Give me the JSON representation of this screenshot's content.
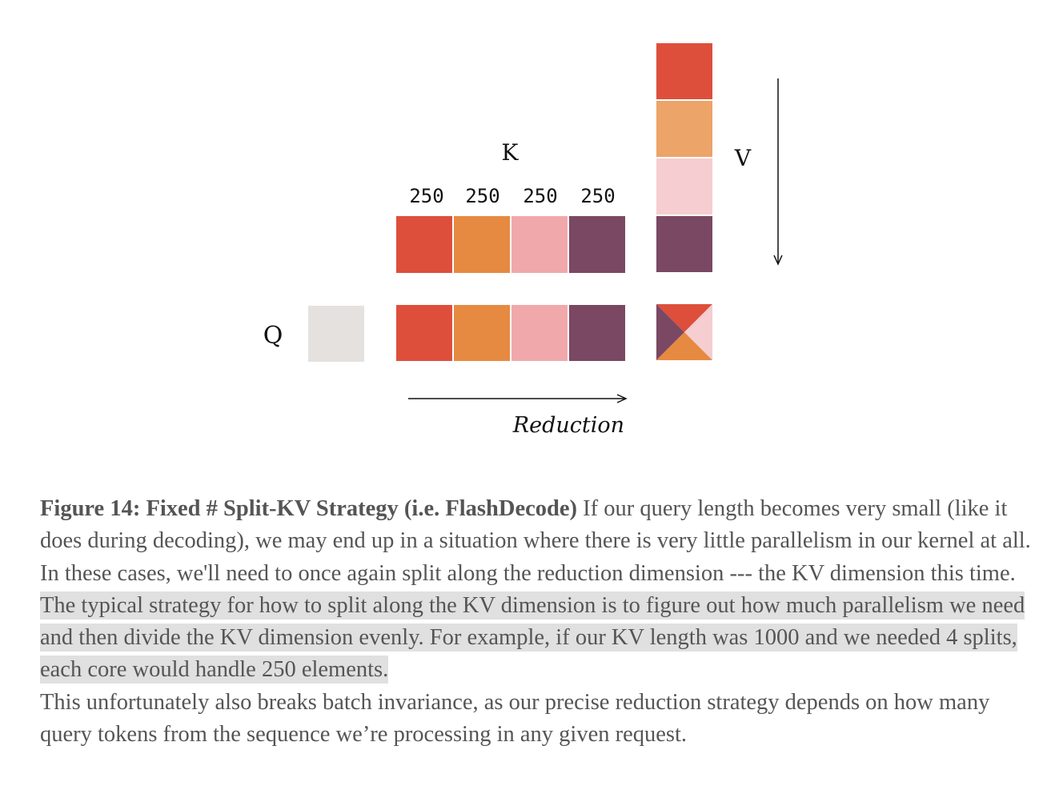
{
  "diagram": {
    "k_label": "K",
    "v_label": "V",
    "q_label": "Q",
    "split_sizes": [
      "250",
      "250",
      "250",
      "250"
    ],
    "reduction_label": "Reduction",
    "colors": {
      "red": "#dd4f3b",
      "orange": "#e68a41",
      "pink": "#f0a8ab",
      "plum": "#7a4862",
      "v_orange": "#eca468",
      "v_pink": "#f6cdd1",
      "q_gray": "#e5e1df"
    }
  },
  "caption": {
    "figure_title": "Figure 14: Fixed # Split-KV Strategy (i.e. FlashDecode)",
    "text_plain": " If our query length becomes very small (like it does during decoding), we may end up in a situation where there is very little parallelism in our kernel at all. In these cases, we'll need to once again split along the reduction dimension --- the KV dimension this time. ",
    "text_highlighted": "The typical strategy for how to split along the KV dimension is to figure out how much parallelism we need and then divide the KV dimension evenly. For example, if our KV length was 1000 and we needed 4 splits, each core would handle 250 elements.",
    "followup": "This unfortunately also breaks batch invariance, as our precise reduction strategy depends on how many query tokens from the sequence we’re processing in any given request."
  }
}
